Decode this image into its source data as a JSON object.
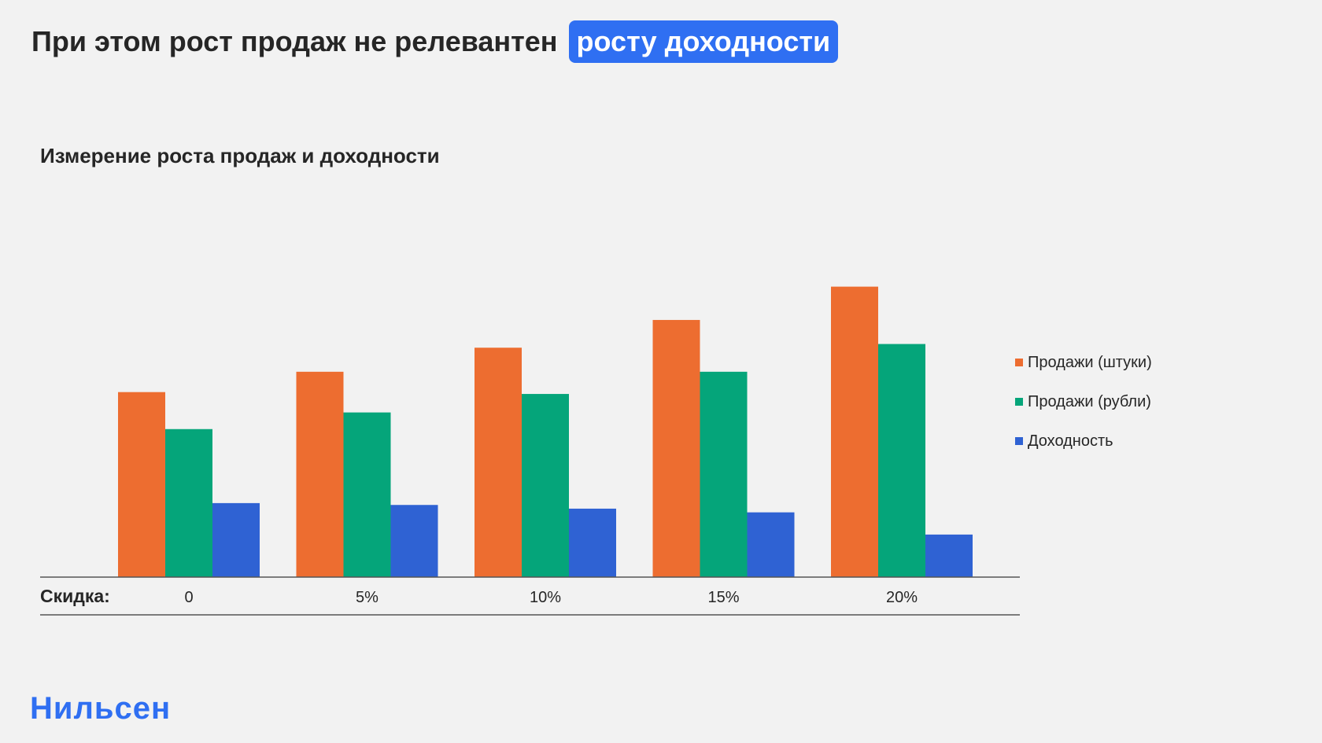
{
  "headline": {
    "text": "При этом рост продаж не релевантен",
    "highlight": "росту доходности"
  },
  "logo": {
    "text": "Нильсен"
  },
  "colors": {
    "background": "#f2f2f2",
    "highlight": "#2f6ff2",
    "logo": "#2f6ff2"
  },
  "chart_data": {
    "type": "bar",
    "title": "Измерение роста продаж и доходности",
    "xlabel": "Скидка:",
    "ylabel": "",
    "categories": [
      "0",
      "5%",
      "10%",
      "15%",
      "20%"
    ],
    "series": [
      {
        "name": "Продажи (штуки)",
        "color": "#ed6d30",
        "values": [
          100,
          111,
          124,
          139,
          157
        ]
      },
      {
        "name": "Продажи (рубли)",
        "color": "#05a57a",
        "values": [
          80,
          89,
          99,
          111,
          126
        ]
      },
      {
        "name": "Доходность",
        "color": "#2f62d3",
        "values": [
          40,
          39,
          37,
          35,
          23
        ]
      }
    ],
    "ylim": [
      0,
      170
    ],
    "grid": false,
    "legend": "right"
  }
}
